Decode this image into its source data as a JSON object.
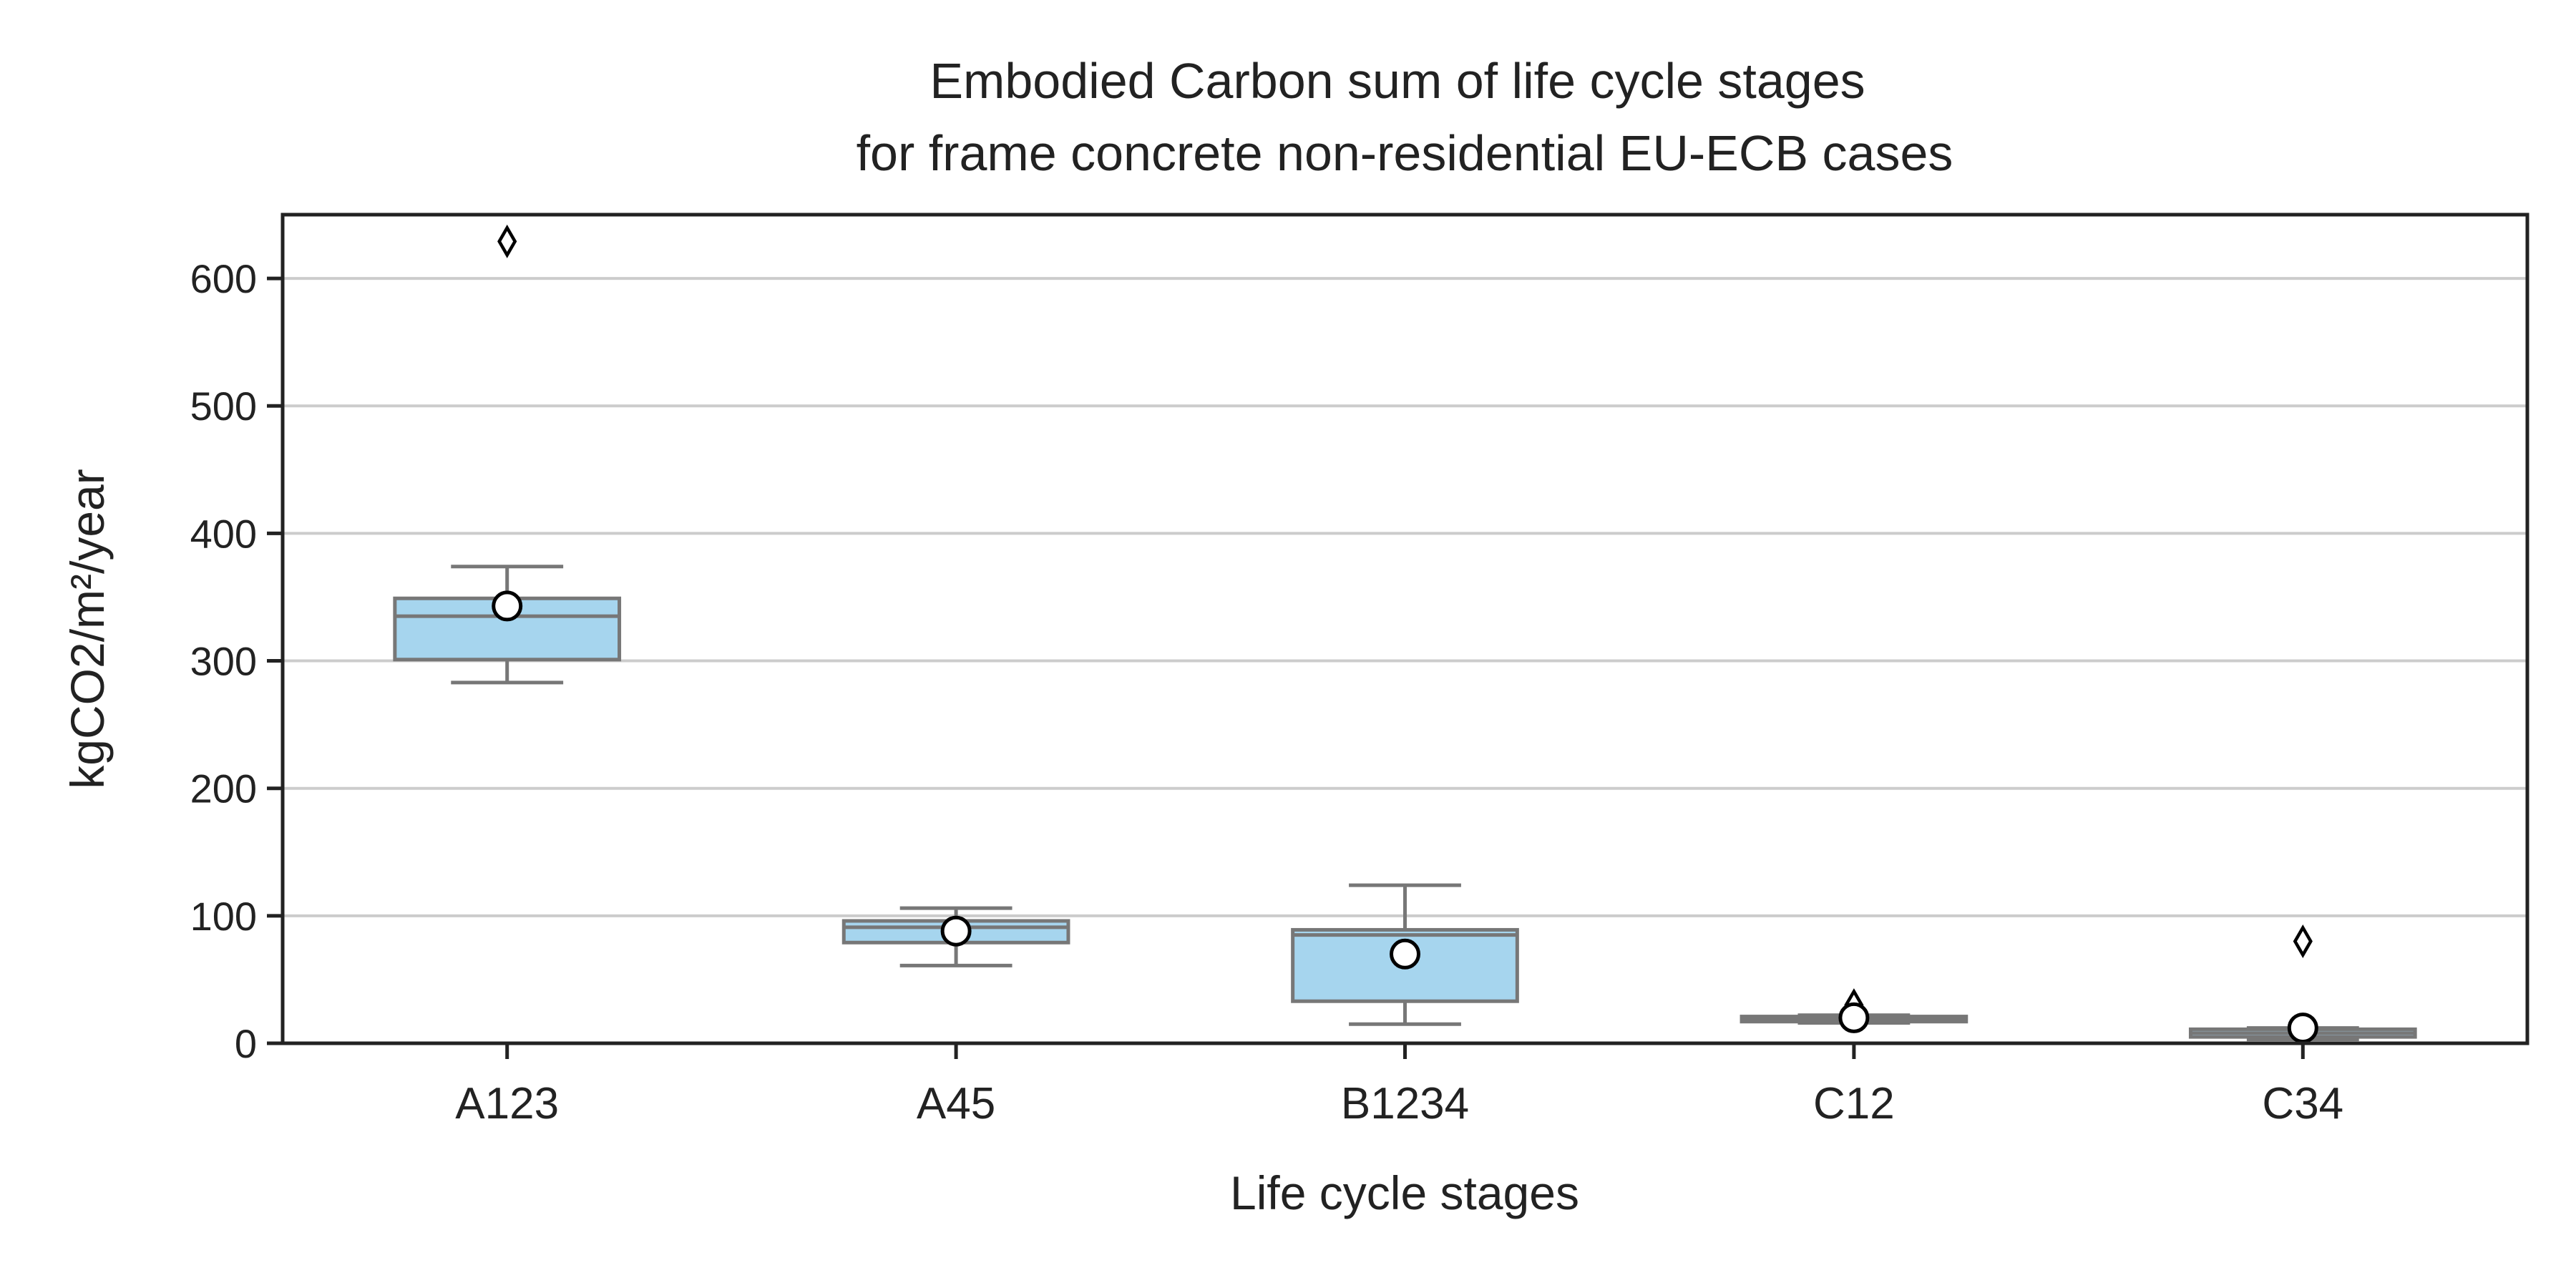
{
  "chart_data": {
    "type": "box",
    "title_lines": [
      "Embodied Carbon sum of life cycle stages",
      "for frame concrete non-residential EU-ECB cases"
    ],
    "xlabel": "Life cycle stages",
    "ylabel": "kgCO2/m²/year",
    "ylim": [
      0,
      650
    ],
    "yticks": [
      0,
      100,
      200,
      300,
      400,
      500,
      600
    ],
    "grid": "horizontal",
    "categories": [
      "A123",
      "A45",
      "B1234",
      "C12",
      "C34"
    ],
    "boxes": [
      {
        "category": "A123",
        "whisker_low": 283,
        "q1": 301,
        "median": 335,
        "q3": 349,
        "whisker_high": 374,
        "mean": 343,
        "outliers": [
          629
        ]
      },
      {
        "category": "A45",
        "whisker_low": 61,
        "q1": 79,
        "median": 91,
        "q3": 96,
        "whisker_high": 106,
        "mean": 88,
        "outliers": []
      },
      {
        "category": "B1234",
        "whisker_low": 15,
        "q1": 33,
        "median": 85,
        "q3": 89,
        "whisker_high": 124,
        "mean": 70,
        "outliers": []
      },
      {
        "category": "C12",
        "whisker_low": 16,
        "q1": 17,
        "median": 19,
        "q3": 21,
        "whisker_high": 22,
        "mean": 20,
        "outliers": [
          30
        ]
      },
      {
        "category": "C34",
        "whisker_low": 3,
        "q1": 5,
        "median": 8,
        "q3": 11,
        "whisker_high": 12,
        "mean": 12,
        "outliers": [
          80
        ]
      }
    ],
    "colors": {
      "box_fill": "#a6d5ee",
      "box_edge": "#777777",
      "grid": "#cccccc",
      "axis": "#222222",
      "mean_fill": "#ffffff",
      "mean_edge": "#000000"
    }
  }
}
